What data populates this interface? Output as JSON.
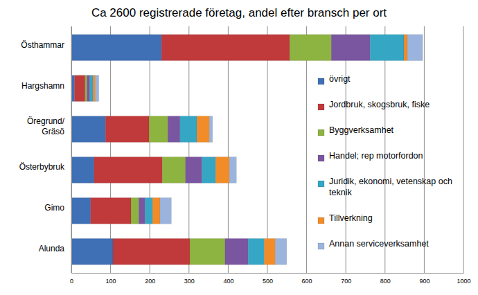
{
  "chart_data": {
    "type": "bar",
    "title": "Ca 2600 registrerade företag, andel efter bransch per ort",
    "orientation": "horizontal",
    "stacked": true,
    "grid": true,
    "legend": "right",
    "categories": [
      "Östhammar",
      "Hargshamn",
      "Öregrund/ Gräsö",
      "Österbybruk",
      "Gimo",
      "Alunda"
    ],
    "series": [
      {
        "name": "övrigt",
        "color": "#3f6fb5",
        "values": [
          230,
          8,
          87,
          58,
          49,
          106
        ]
      },
      {
        "name": "Jordbruk, skogsbruk, fiske",
        "color": "#c0393b",
        "values": [
          327,
          27,
          111,
          174,
          103,
          196
        ]
      },
      {
        "name": "Byggverksamhet",
        "color": "#8db340",
        "values": [
          106,
          5,
          48,
          59,
          20,
          90
        ]
      },
      {
        "name": "Handel; rep motorfordon",
        "color": "#7a55a0",
        "values": [
          99,
          7,
          31,
          42,
          16,
          59
        ]
      },
      {
        "name": "Juridik, ekonomi, vetenskap och teknik",
        "color": "#35a6c4",
        "values": [
          86,
          8,
          43,
          35,
          19,
          41
        ]
      },
      {
        "name": "Tillverkning",
        "color": "#f28c28",
        "values": [
          9,
          6,
          32,
          35,
          19,
          28
        ]
      },
      {
        "name": "Annan serviceverksamhet",
        "color": "#9bb4de",
        "values": [
          39,
          9,
          8,
          18,
          29,
          29
        ]
      }
    ],
    "xlim": [
      0,
      1000
    ],
    "xticks": [
      0,
      100,
      200,
      300,
      400,
      500,
      600,
      700,
      800,
      900,
      1000
    ]
  }
}
